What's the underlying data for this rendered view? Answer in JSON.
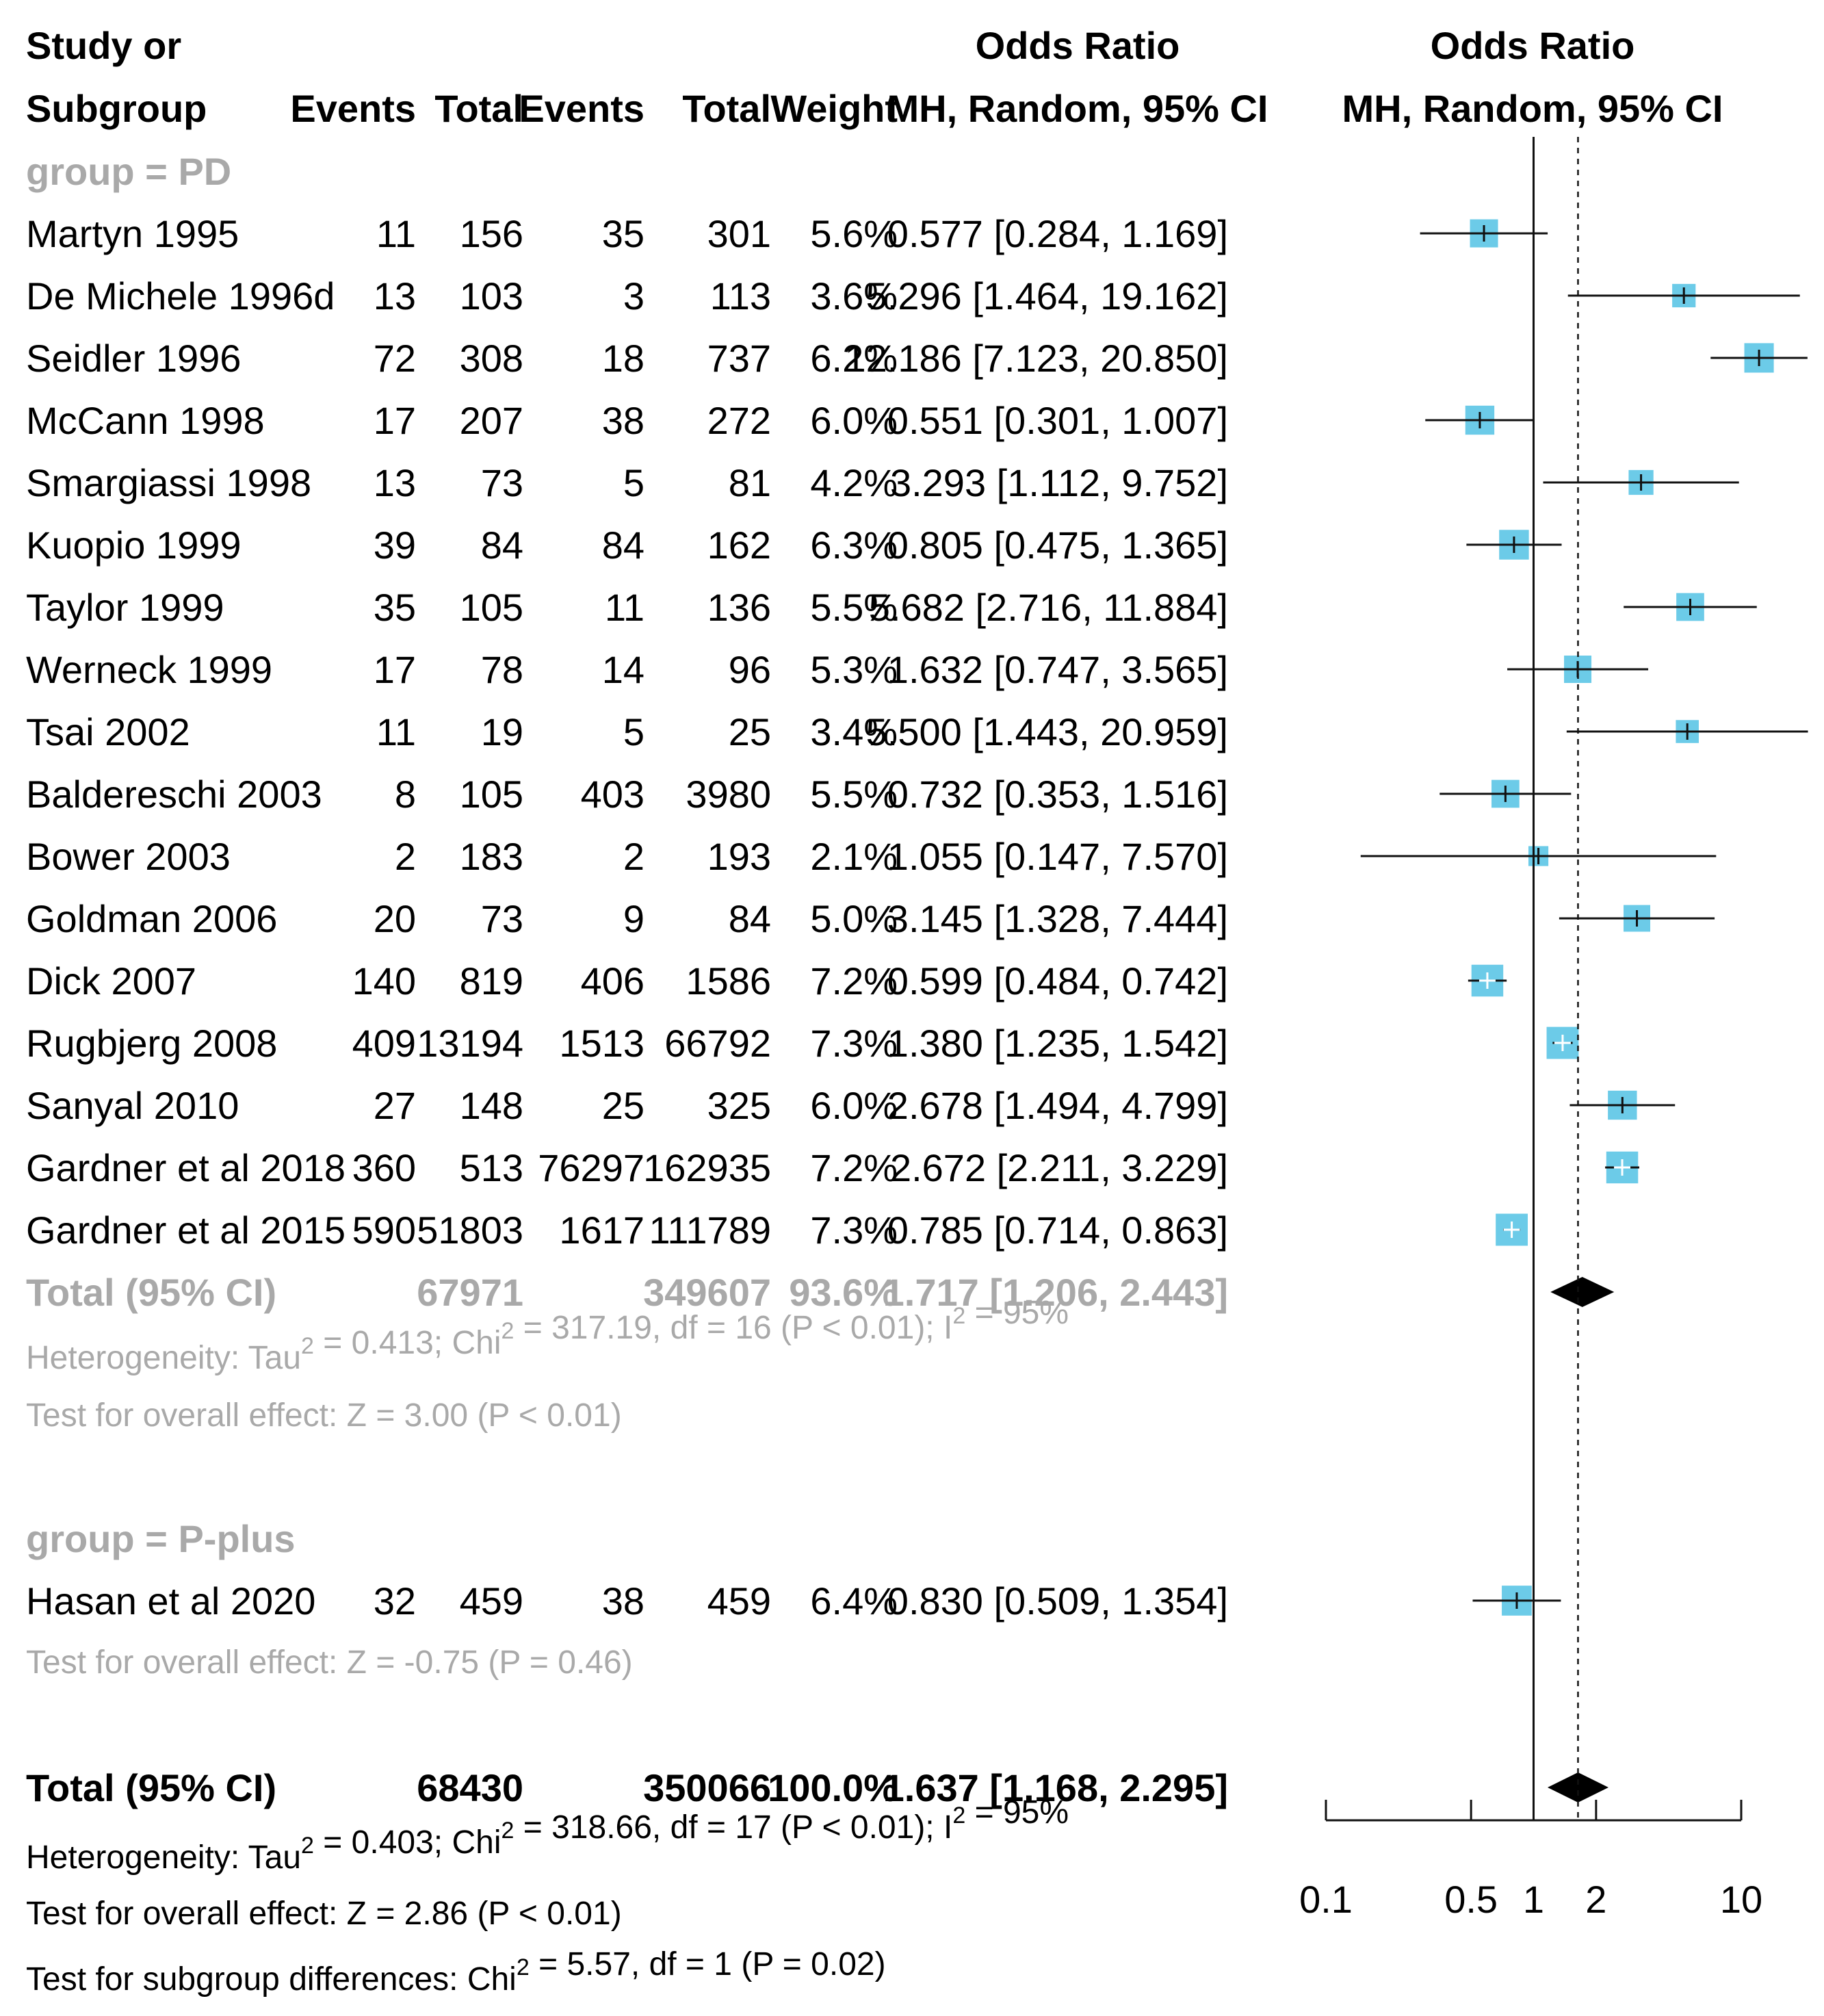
{
  "headers": {
    "study_line1": "Study or",
    "study_line2": "Subgroup",
    "events1": "Events",
    "total1": "Total",
    "events2": "Events",
    "total2": "Total",
    "weight": "Weight",
    "or_line1": "Odds Ratio",
    "or_line2": "MH, Random, 95% CI",
    "plot_line1": "Odds Ratio",
    "plot_line2": "MH, Random, 95% CI"
  },
  "colors": {
    "box": "#6ccbe8",
    "text": "#111111",
    "grey": "#a9a9a9"
  },
  "groups": [
    {
      "label": "group = PD",
      "studies": [
        {
          "study": "Martyn 1995",
          "e1": "11",
          "t1": "156",
          "e2": "35",
          "t2": "301",
          "weight": "5.6%",
          "ci": "0.577 [0.284,  1.169]",
          "or": 0.577,
          "lo": 0.284,
          "hi": 1.169,
          "w": 5.6
        },
        {
          "study": "De Michele 1996d",
          "e1": "13",
          "t1": "103",
          "e2": "3",
          "t2": "113",
          "weight": "3.6%",
          "ci": "5.296 [1.464, 19.162]",
          "or": 5.296,
          "lo": 1.464,
          "hi": 19.162,
          "w": 3.6
        },
        {
          "study": "Seidler 1996",
          "e1": "72",
          "t1": "308",
          "e2": "18",
          "t2": "737",
          "weight": "6.2%",
          "ci": "12.186 [7.123, 20.850]",
          "or": 12.186,
          "lo": 7.123,
          "hi": 20.85,
          "w": 6.2
        },
        {
          "study": "McCann 1998",
          "e1": "17",
          "t1": "207",
          "e2": "38",
          "t2": "272",
          "weight": "6.0%",
          "ci": "0.551 [0.301,  1.007]",
          "or": 0.551,
          "lo": 0.301,
          "hi": 1.007,
          "w": 6.0
        },
        {
          "study": "Smargiassi 1998",
          "e1": "13",
          "t1": "73",
          "e2": "5",
          "t2": "81",
          "weight": "4.2%",
          "ci": "3.293 [1.112,  9.752]",
          "or": 3.293,
          "lo": 1.112,
          "hi": 9.752,
          "w": 4.2
        },
        {
          "study": "Kuopio 1999",
          "e1": "39",
          "t1": "84",
          "e2": "84",
          "t2": "162",
          "weight": "6.3%",
          "ci": "0.805 [0.475,  1.365]",
          "or": 0.805,
          "lo": 0.475,
          "hi": 1.365,
          "w": 6.3
        },
        {
          "study": "Taylor 1999",
          "e1": "35",
          "t1": "105",
          "e2": "11",
          "t2": "136",
          "weight": "5.5%",
          "ci": "5.682 [2.716, 11.884]",
          "or": 5.682,
          "lo": 2.716,
          "hi": 11.884,
          "w": 5.5
        },
        {
          "study": "Werneck 1999",
          "e1": "17",
          "t1": "78",
          "e2": "14",
          "t2": "96",
          "weight": "5.3%",
          "ci": "1.632 [0.747,  3.565]",
          "or": 1.632,
          "lo": 0.747,
          "hi": 3.565,
          "w": 5.3
        },
        {
          "study": "Tsai 2002",
          "e1": "11",
          "t1": "19",
          "e2": "5",
          "t2": "25",
          "weight": "3.4%",
          "ci": "5.500 [1.443, 20.959]",
          "or": 5.5,
          "lo": 1.443,
          "hi": 20.959,
          "w": 3.4
        },
        {
          "study": "Baldereschi 2003",
          "e1": "8",
          "t1": "105",
          "e2": "403",
          "t2": "3980",
          "weight": "5.5%",
          "ci": "0.732 [0.353,  1.516]",
          "or": 0.732,
          "lo": 0.353,
          "hi": 1.516,
          "w": 5.5
        },
        {
          "study": "Bower 2003",
          "e1": "2",
          "t1": "183",
          "e2": "2",
          "t2": "193",
          "weight": "2.1%",
          "ci": "1.055 [0.147,  7.570]",
          "or": 1.055,
          "lo": 0.147,
          "hi": 7.57,
          "w": 2.1
        },
        {
          "study": "Goldman 2006",
          "e1": "20",
          "t1": "73",
          "e2": "9",
          "t2": "84",
          "weight": "5.0%",
          "ci": "3.145 [1.328,  7.444]",
          "or": 3.145,
          "lo": 1.328,
          "hi": 7.444,
          "w": 5.0
        },
        {
          "study": "Dick 2007",
          "e1": "140",
          "t1": "819",
          "e2": "406",
          "t2": "1586",
          "weight": "7.2%",
          "ci": "0.599 [0.484,  0.742]",
          "or": 0.599,
          "lo": 0.484,
          "hi": 0.742,
          "w": 7.2
        },
        {
          "study": "Rugbjerg 2008",
          "e1": "409",
          "t1": "13194",
          "e2": "1513",
          "t2": "66792",
          "weight": "7.3%",
          "ci": "1.380 [1.235,  1.542]",
          "or": 1.38,
          "lo": 1.235,
          "hi": 1.542,
          "w": 7.3
        },
        {
          "study": "Sanyal 2010",
          "e1": "27",
          "t1": "148",
          "e2": "25",
          "t2": "325",
          "weight": "6.0%",
          "ci": "2.678 [1.494,  4.799]",
          "or": 2.678,
          "lo": 1.494,
          "hi": 4.799,
          "w": 6.0
        },
        {
          "study": "Gardner et al 2018",
          "e1": "360",
          "t1": "513",
          "e2": "76297",
          "t2": "162935",
          "weight": "7.2%",
          "ci": "2.672 [2.211,  3.229]",
          "or": 2.672,
          "lo": 2.211,
          "hi": 3.229,
          "w": 7.2
        },
        {
          "study": "Gardner et al 2015",
          "e1": "590",
          "t1": "51803",
          "e2": "1617",
          "t2": "111789",
          "weight": "7.3%",
          "ci": "0.785 [0.714,  0.863]",
          "or": 0.785,
          "lo": 0.714,
          "hi": 0.863,
          "w": 7.3
        }
      ],
      "total": {
        "label": "Total (95% CI)",
        "t1": "67971",
        "t2": "349607",
        "weight": "93.6%",
        "ci": "1.717 [1.206,  2.443]",
        "or": 1.717,
        "lo": 1.206,
        "hi": 2.443
      },
      "heterogeneity": {
        "a": "Heterogeneity: Tau",
        "b": " = 0.413; Chi",
        "c": " = 317.19, df = 16 (P < 0.01); I",
        "d": " = 95%",
        "sup": "2"
      },
      "overall": "Test for overall effect: Z = 3.00 (P < 0.01)"
    },
    {
      "label": "group = P-plus",
      "studies": [
        {
          "study": "Hasan et al 2020",
          "e1": "32",
          "t1": "459",
          "e2": "38",
          "t2": "459",
          "weight": "6.4%",
          "ci": "0.830 [0.509,  1.354]",
          "or": 0.83,
          "lo": 0.509,
          "hi": 1.354,
          "w": 6.4
        }
      ],
      "overall": "Test for overall effect: Z = -0.75 (P = 0.46)"
    }
  ],
  "overall_total": {
    "label": "Total (95% CI)",
    "t1": "68430",
    "t2": "350066",
    "weight": "100.0%",
    "ci": "1.637 [1.168,  2.295]",
    "or": 1.637,
    "lo": 1.168,
    "hi": 2.295
  },
  "footer": {
    "het": {
      "a": "Heterogeneity: Tau",
      "b": " = 0.403; Chi",
      "c": " = 318.66, df = 17 (P < 0.01); I",
      "d": " = 95%",
      "sup": "2"
    },
    "overall": "Test for overall effect: Z = 2.86 (P < 0.01)",
    "subgroup": {
      "a": "Test for subgroup differences: Chi",
      "b": " = 5.57, df = 1 (P = 0.02)",
      "sup": "2"
    }
  },
  "chart_data": {
    "type": "forest",
    "title": "Odds Ratio MH, Random, 95% CI",
    "xscale": "log",
    "xlim": [
      0.1,
      10
    ],
    "xticks": [
      "0.1",
      "0.5",
      "1",
      "2",
      "10"
    ],
    "reference_line": 1,
    "pooled_line": 1.637
  }
}
